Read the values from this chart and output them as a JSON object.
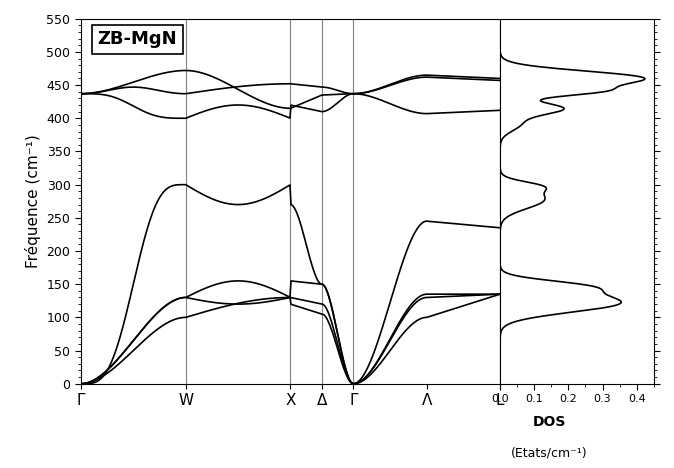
{
  "title": "ZB-MgN",
  "ylabel": "Fréquence (cm⁻¹)",
  "dos_xlabel": "DOS",
  "dos_xlabel2": "(Etats/cm⁻¹)",
  "xticklabels": [
    "Γ",
    "W",
    "X",
    "Δ",
    "Γ",
    "Λ",
    "L"
  ],
  "xticklabel_positions": [
    0,
    0.25,
    0.5,
    0.575,
    0.65,
    0.825,
    1.0
  ],
  "vline_positions": [
    0.25,
    0.5,
    0.575,
    0.65
  ],
  "ylim": [
    0,
    550
  ],
  "dos_xlim": [
    0,
    0.45
  ],
  "dos_xticks": [
    0.0,
    0.1,
    0.2,
    0.3,
    0.4
  ],
  "yticks": [
    0,
    50,
    100,
    150,
    200,
    250,
    300,
    350,
    400,
    450,
    500,
    550
  ],
  "line_color": "#000000",
  "background_color": "#ffffff"
}
